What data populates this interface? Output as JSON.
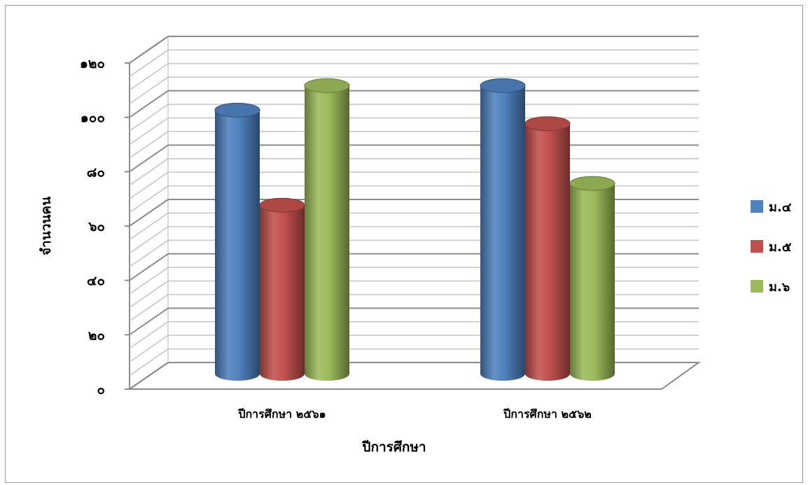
{
  "chart_data": {
    "type": "bar",
    "title": "",
    "xlabel": "ปีการศึกษา",
    "ylabel": "จำนวนคน",
    "categories": [
      "ปีการศึกษา ๒๕๖๑",
      "ปีการศึกษา ๒๕๖๒"
    ],
    "series": [
      {
        "name": "ม.๔",
        "values": [
          97,
          106
        ],
        "color": "#4f81bd"
      },
      {
        "name": "ม.๕",
        "values": [
          62,
          92
        ],
        "color": "#c0504d"
      },
      {
        "name": "ม.๖",
        "values": [
          106,
          70
        ],
        "color": "#9bbb59"
      }
    ],
    "ylim": [
      0,
      120
    ],
    "yticks": [
      0,
      20,
      40,
      60,
      80,
      100,
      120
    ],
    "ytick_labels": [
      "๐",
      "๒๐",
      "๔๐",
      "๖๐",
      "๘๐",
      "๑๐๐",
      "๑๒๐"
    ],
    "grid": true,
    "legend_position": "right",
    "style": "3d-cylinder"
  }
}
